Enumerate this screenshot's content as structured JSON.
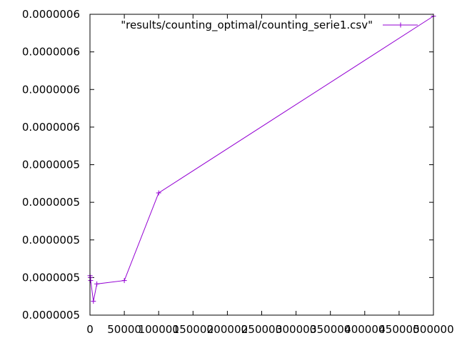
{
  "chart_data": {
    "type": "line",
    "title": "",
    "xlabel": "",
    "ylabel": "",
    "xlim": [
      0,
      500000
    ],
    "ylim": [
      0,
      8
    ],
    "x_ticks": [
      {
        "value": 0,
        "label": "0"
      },
      {
        "value": 50000,
        "label": "50000"
      },
      {
        "value": 100000,
        "label": "100000"
      },
      {
        "value": 150000,
        "label": "150000"
      },
      {
        "value": 200000,
        "label": "200000"
      },
      {
        "value": 250000,
        "label": "250000"
      },
      {
        "value": 300000,
        "label": "300000"
      },
      {
        "value": 350000,
        "label": "350000"
      },
      {
        "value": 400000,
        "label": "400000"
      },
      {
        "value": 450000,
        "label": "450000"
      },
      {
        "value": 500000,
        "label": "500000"
      }
    ],
    "y_ticks": [
      {
        "value": 0,
        "label": "0.0000005"
      },
      {
        "value": 1,
        "label": "0.0000005"
      },
      {
        "value": 2,
        "label": "0.0000005"
      },
      {
        "value": 3,
        "label": "0.0000005"
      },
      {
        "value": 4,
        "label": "0.0000005"
      },
      {
        "value": 5,
        "label": "0.0000006"
      },
      {
        "value": 6,
        "label": "0.0000006"
      },
      {
        "value": 7,
        "label": "0.0000006"
      },
      {
        "value": 8,
        "label": "0.0000006"
      }
    ],
    "grid": false,
    "legend_position": "top-right",
    "series": [
      {
        "name": "\"results/counting_optimal/counting_serie1.csv\"",
        "color": "#9400d3",
        "marker": "plus",
        "x": [
          100,
          500,
          1000,
          5000,
          10000,
          50000,
          100000,
          500000
        ],
        "y": [
          1.05,
          1.0,
          0.92,
          0.37,
          0.83,
          0.92,
          3.25,
          7.95
        ]
      }
    ]
  }
}
